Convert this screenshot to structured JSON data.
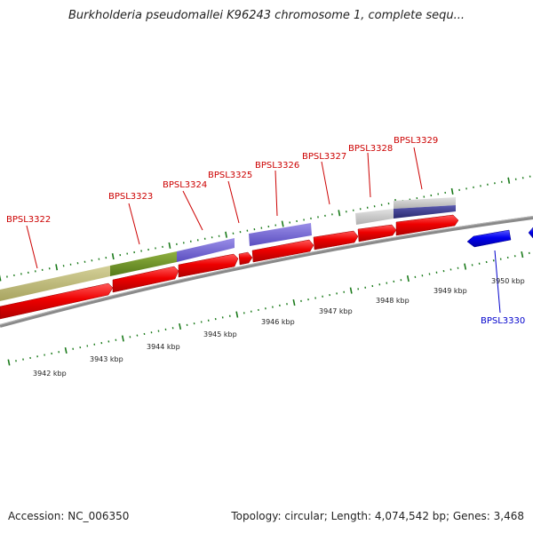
{
  "title": "Burkholderia pseudomallei K96243 chromosome 1, complete sequ...",
  "footer": {
    "accession": "Accession: NC_006350",
    "stats": "Topology: circular; Length: 4,074,542 bp; Genes: 3,468"
  },
  "axis": {
    "unit": "kbp",
    "kbp_labels": [
      {
        "text": "3942 kbp",
        "kbp": 3942
      },
      {
        "text": "3943 kbp",
        "kbp": 3943
      },
      {
        "text": "3944 kbp",
        "kbp": 3944
      },
      {
        "text": "3945 kbp",
        "kbp": 3945
      },
      {
        "text": "3946 kbp",
        "kbp": 3946
      },
      {
        "text": "3947 kbp",
        "kbp": 3947
      },
      {
        "text": "3948 kbp",
        "kbp": 3948
      },
      {
        "text": "3949 kbp",
        "kbp": 3949
      },
      {
        "text": "3950 kbp",
        "kbp": 3950
      }
    ]
  },
  "genes": [
    {
      "label": "BPSL3322",
      "color": "#cc0000"
    },
    {
      "label": "BPSL3323",
      "color": "#cc0000"
    },
    {
      "label": "BPSL3324",
      "color": "#cc0000"
    },
    {
      "label": "BPSL3325",
      "color": "#cc0000"
    },
    {
      "label": "BPSL3326",
      "color": "#cc0000"
    },
    {
      "label": "BPSL3327",
      "color": "#cc0000"
    },
    {
      "label": "BPSL3328",
      "color": "#cc0000"
    },
    {
      "label": "BPSL3329",
      "color": "#cc0000"
    },
    {
      "label": "BPSL3330",
      "color": "#0000cc"
    }
  ],
  "colors": {
    "forward_cds": "#ee0000",
    "reverse_cds": "#0000ee",
    "backbone": "#808080",
    "tick": "#1a7a1a",
    "cog_olive": "#b8b46a",
    "cog_green": "#6b8e23",
    "cog_blue": "#6a5acd",
    "cog_navy": "#3a3a8c",
    "cog_gray": "#c0c0c0"
  }
}
